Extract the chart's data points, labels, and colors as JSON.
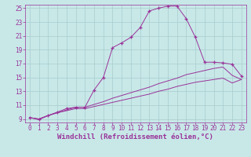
{
  "xlabel": "Windchill (Refroidissement éolien,°C)",
  "bg_color": "#c8e8e8",
  "grid_color": "#a8cccc",
  "line_color": "#993399",
  "xlim": [
    -0.5,
    23.5
  ],
  "ylim": [
    8.5,
    25.5
  ],
  "yticks": [
    9,
    11,
    13,
    15,
    17,
    19,
    21,
    23,
    25
  ],
  "xticks": [
    0,
    1,
    2,
    3,
    4,
    5,
    6,
    7,
    8,
    9,
    10,
    11,
    12,
    13,
    14,
    15,
    16,
    17,
    18,
    19,
    20,
    21,
    22,
    23
  ],
  "line1_x": [
    0,
    1,
    2,
    3,
    4,
    5,
    6,
    7,
    8,
    9,
    10,
    11,
    12,
    13,
    14,
    15,
    16,
    17,
    18,
    19,
    20,
    21,
    22,
    23
  ],
  "line1_y": [
    9.2,
    8.9,
    9.5,
    10.0,
    10.5,
    10.7,
    10.7,
    13.2,
    15.0,
    19.3,
    20.0,
    20.8,
    22.2,
    24.6,
    25.0,
    25.3,
    25.3,
    23.5,
    20.8,
    17.2,
    17.2,
    17.1,
    16.9,
    15.2
  ],
  "line2_x": [
    0,
    1,
    2,
    3,
    4,
    5,
    6,
    7,
    8,
    9,
    10,
    11,
    12,
    13,
    14,
    15,
    16,
    17,
    18,
    19,
    20,
    21,
    22,
    23
  ],
  "line2_y": [
    9.2,
    9.0,
    9.5,
    9.9,
    10.3,
    10.7,
    10.7,
    11.1,
    11.5,
    12.0,
    12.4,
    12.8,
    13.2,
    13.6,
    14.1,
    14.5,
    14.9,
    15.4,
    15.7,
    16.0,
    16.3,
    16.5,
    15.3,
    14.7
  ],
  "line3_x": [
    0,
    1,
    2,
    3,
    4,
    5,
    6,
    7,
    8,
    9,
    10,
    11,
    12,
    13,
    14,
    15,
    16,
    17,
    18,
    19,
    20,
    21,
    22,
    23
  ],
  "line3_y": [
    9.2,
    9.0,
    9.5,
    9.9,
    10.2,
    10.5,
    10.5,
    10.8,
    11.1,
    11.4,
    11.7,
    12.0,
    12.3,
    12.6,
    13.0,
    13.3,
    13.7,
    14.0,
    14.3,
    14.5,
    14.7,
    14.9,
    14.2,
    14.7
  ],
  "xlabel_fontsize": 6.5,
  "tick_fontsize": 5.5,
  "figwidth": 3.2,
  "figheight": 2.0,
  "dpi": 100
}
